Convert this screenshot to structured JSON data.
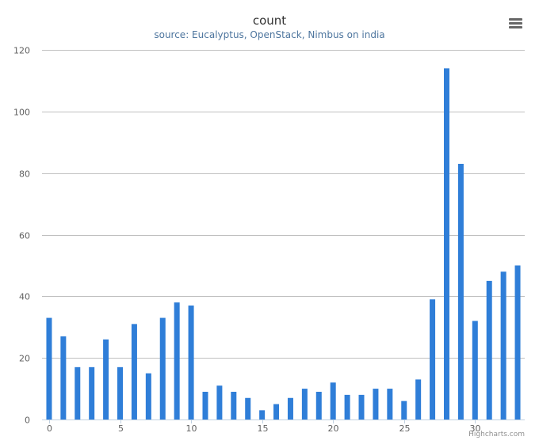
{
  "chart_data": {
    "type": "bar",
    "title": "count",
    "subtitle": "source: Eucalyptus, OpenStack, Nimbus on india",
    "x": [
      0,
      1,
      2,
      3,
      4,
      5,
      6,
      7,
      8,
      9,
      10,
      11,
      12,
      13,
      14,
      15,
      16,
      17,
      18,
      19,
      20,
      21,
      22,
      23,
      24,
      25,
      26,
      27,
      28,
      29,
      30,
      31,
      32,
      33
    ],
    "values": [
      33,
      27,
      17,
      17,
      26,
      17,
      31,
      15,
      33,
      38,
      37,
      9,
      11,
      9,
      7,
      3,
      5,
      7,
      10,
      9,
      12,
      8,
      8,
      10,
      10,
      6,
      13,
      39,
      114,
      83,
      32,
      45,
      48,
      50
    ],
    "xlim": [
      -0.5,
      33.5
    ],
    "ylim": [
      0,
      120
    ],
    "x_ticks": [
      0,
      5,
      10,
      15,
      20,
      25,
      30
    ],
    "y_ticks": [
      0,
      20,
      40,
      60,
      80,
      100,
      120
    ],
    "xlabel": "",
    "ylabel": "",
    "grid": true,
    "legend": false,
    "bar_color": "#2f7ed8"
  },
  "colors": {
    "bar": "#2f7ed8",
    "grid": "#c0c0c0",
    "axis_line": "#c0d0e0",
    "tick_label": "#606060"
  },
  "icons": {
    "menu": "hamburger-menu-icon"
  },
  "credits": "Highcharts.com"
}
